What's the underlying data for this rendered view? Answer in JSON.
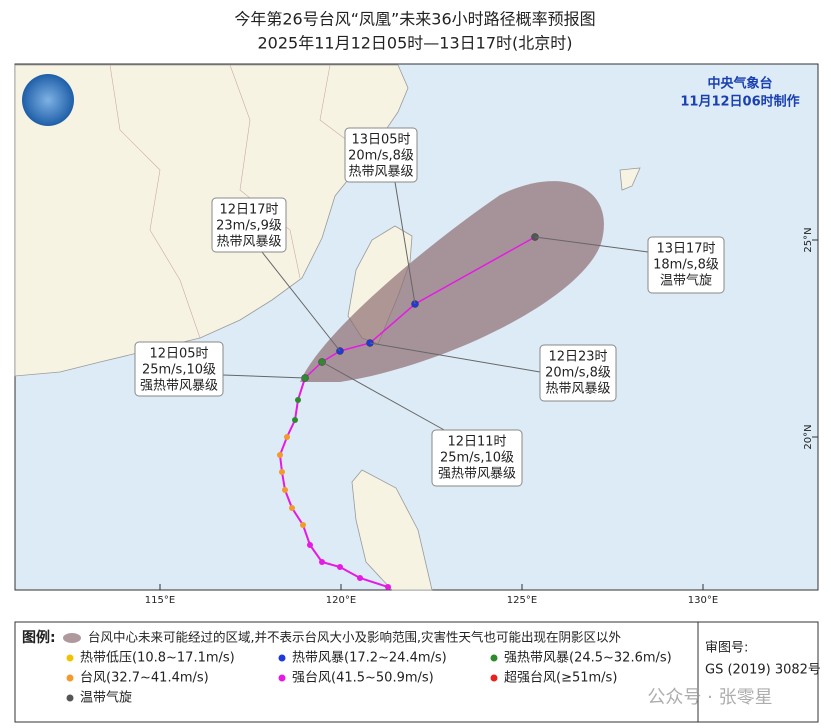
{
  "header": {
    "title": "今年第26号台风“凤凰”未来36小时路径概率预报图",
    "subtitle": "2025年11月12日05时—13日17时(北京时)"
  },
  "agency": {
    "name": "中央气象台",
    "issued": "11月12日06时制作"
  },
  "map": {
    "longitude_labels": [
      "115°E",
      "120°E",
      "125°E",
      "130°E"
    ],
    "latitude_labels": [
      "25°N",
      "20°N"
    ]
  },
  "callouts": [
    {
      "time": "13日05时",
      "wind": "20m/s,8级",
      "grade": "热带风暴级"
    },
    {
      "time": "12日17时",
      "wind": "23m/s,9级",
      "grade": "热带风暴级"
    },
    {
      "time": "12日05时",
      "wind": "25m/s,10级",
      "grade": "强热带风暴级"
    },
    {
      "time": "12日11时",
      "wind": "25m/s,10级",
      "grade": "强热带风暴级"
    },
    {
      "time": "12日23时",
      "wind": "20m/s,8级",
      "grade": "热带风暴级"
    },
    {
      "time": "13日17时",
      "wind": "18m/s,8级",
      "grade": "温带气旋"
    }
  ],
  "legend": {
    "title": "图例:",
    "cone_text": "台风中心未来可能经过的区域,并不表示台风大小及影响范围,灾害性天气也可能出现在阴影区以外",
    "items": [
      {
        "label": "热带低压(10.8~17.1m/s)",
        "color": "#f2c200"
      },
      {
        "label": "热带风暴(17.2~24.4m/s)",
        "color": "#1f3ad8"
      },
      {
        "label": "强热带风暴(24.5~32.6m/s)",
        "color": "#2a8c2a"
      },
      {
        "label": "台风(32.7~41.4m/s)",
        "color": "#f39a2c"
      },
      {
        "label": "强台风(41.5~50.9m/s)",
        "color": "#e51ae5"
      },
      {
        "label": "超强台风(≥51m/s)",
        "color": "#e8231b"
      },
      {
        "label": "温带气旋",
        "color": "#555555"
      }
    ]
  },
  "review": {
    "label": "审图号:",
    "number": "GS (2019) 3082号"
  },
  "watermark": "公众号 · 张零星"
}
